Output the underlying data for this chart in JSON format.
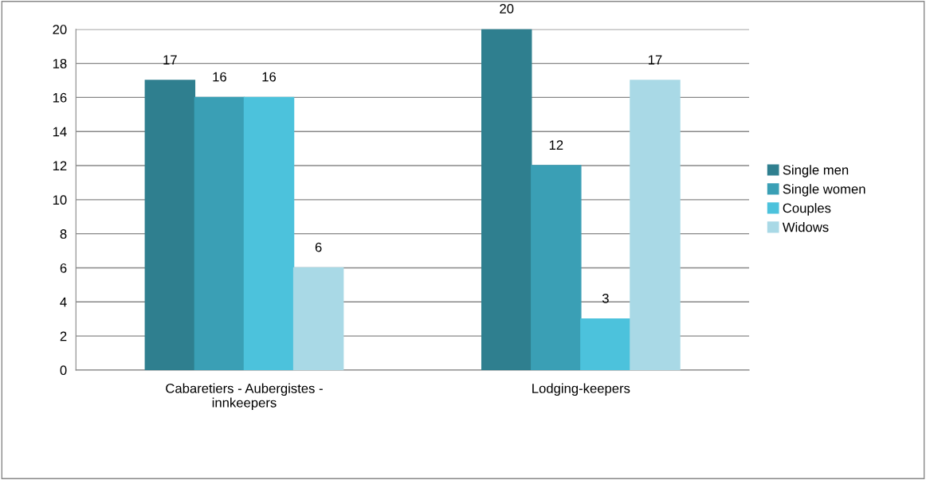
{
  "chart_data": {
    "type": "bar",
    "categories": [
      "Cabaretiers - Aubergistes -\ninnkeepers",
      "Lodging-keepers"
    ],
    "series": [
      {
        "name": "Single men",
        "color": "#2f7f8f",
        "values": [
          17,
          20
        ]
      },
      {
        "name": "Single women",
        "color": "#3a9fb5",
        "values": [
          16,
          12
        ]
      },
      {
        "name": "Couples",
        "color": "#4cc2dc",
        "values": [
          16,
          3
        ]
      },
      {
        "name": "Widows",
        "color": "#a9d9e6",
        "values": [
          6,
          17
        ]
      }
    ],
    "ylim": [
      0,
      20
    ],
    "yticks": [
      0,
      2,
      4,
      6,
      8,
      10,
      12,
      14,
      16,
      18,
      20
    ],
    "grid": "y",
    "legend": "right",
    "data_labels": true
  }
}
